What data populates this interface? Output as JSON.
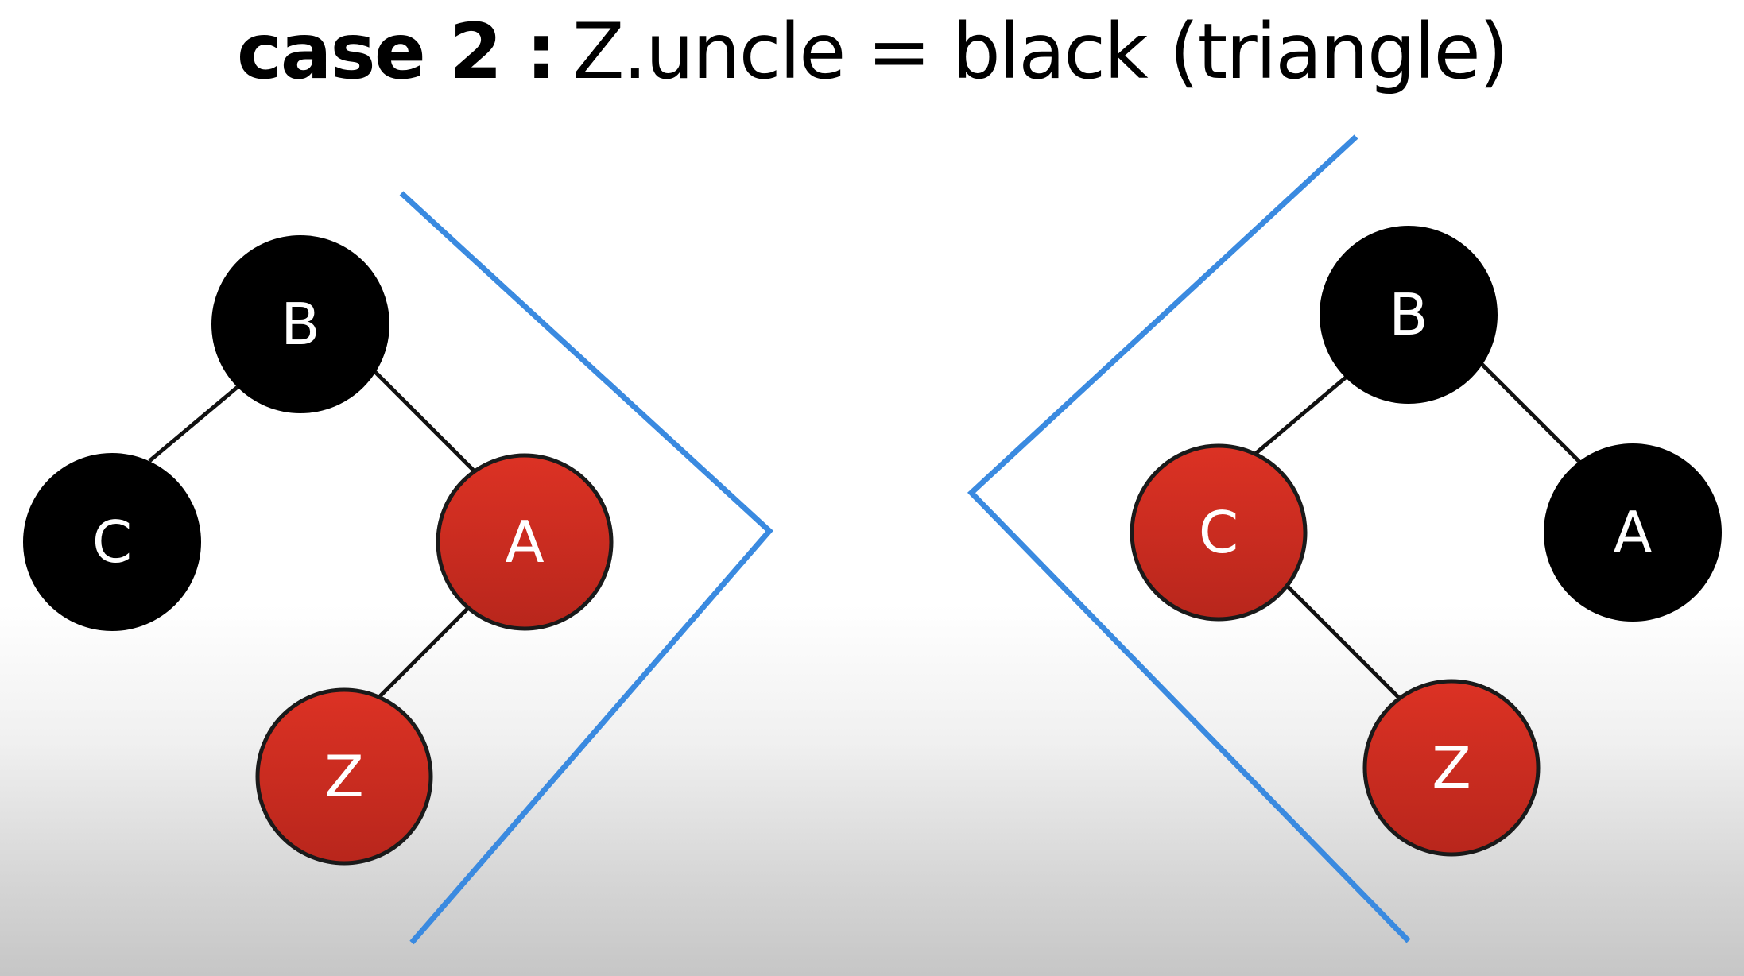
{
  "title": {
    "bold": "case 2 :",
    "rest": "Z.uncle = black (triangle)"
  },
  "colors": {
    "black_node": "#000000",
    "red_node": "#d42e22",
    "red_node_border": "#1a1a1a",
    "edge": "#111111",
    "bracket": "#3a8ae0"
  },
  "left_tree": {
    "nodes": {
      "b": {
        "label": "B",
        "color": "black"
      },
      "c": {
        "label": "C",
        "color": "black"
      },
      "a": {
        "label": "A",
        "color": "red"
      },
      "z": {
        "label": "Z",
        "color": "red"
      }
    }
  },
  "right_tree": {
    "nodes": {
      "b": {
        "label": "B",
        "color": "black"
      },
      "c": {
        "label": "C",
        "color": "red"
      },
      "a": {
        "label": "A",
        "color": "black"
      },
      "z": {
        "label": "Z",
        "color": "red"
      }
    }
  }
}
